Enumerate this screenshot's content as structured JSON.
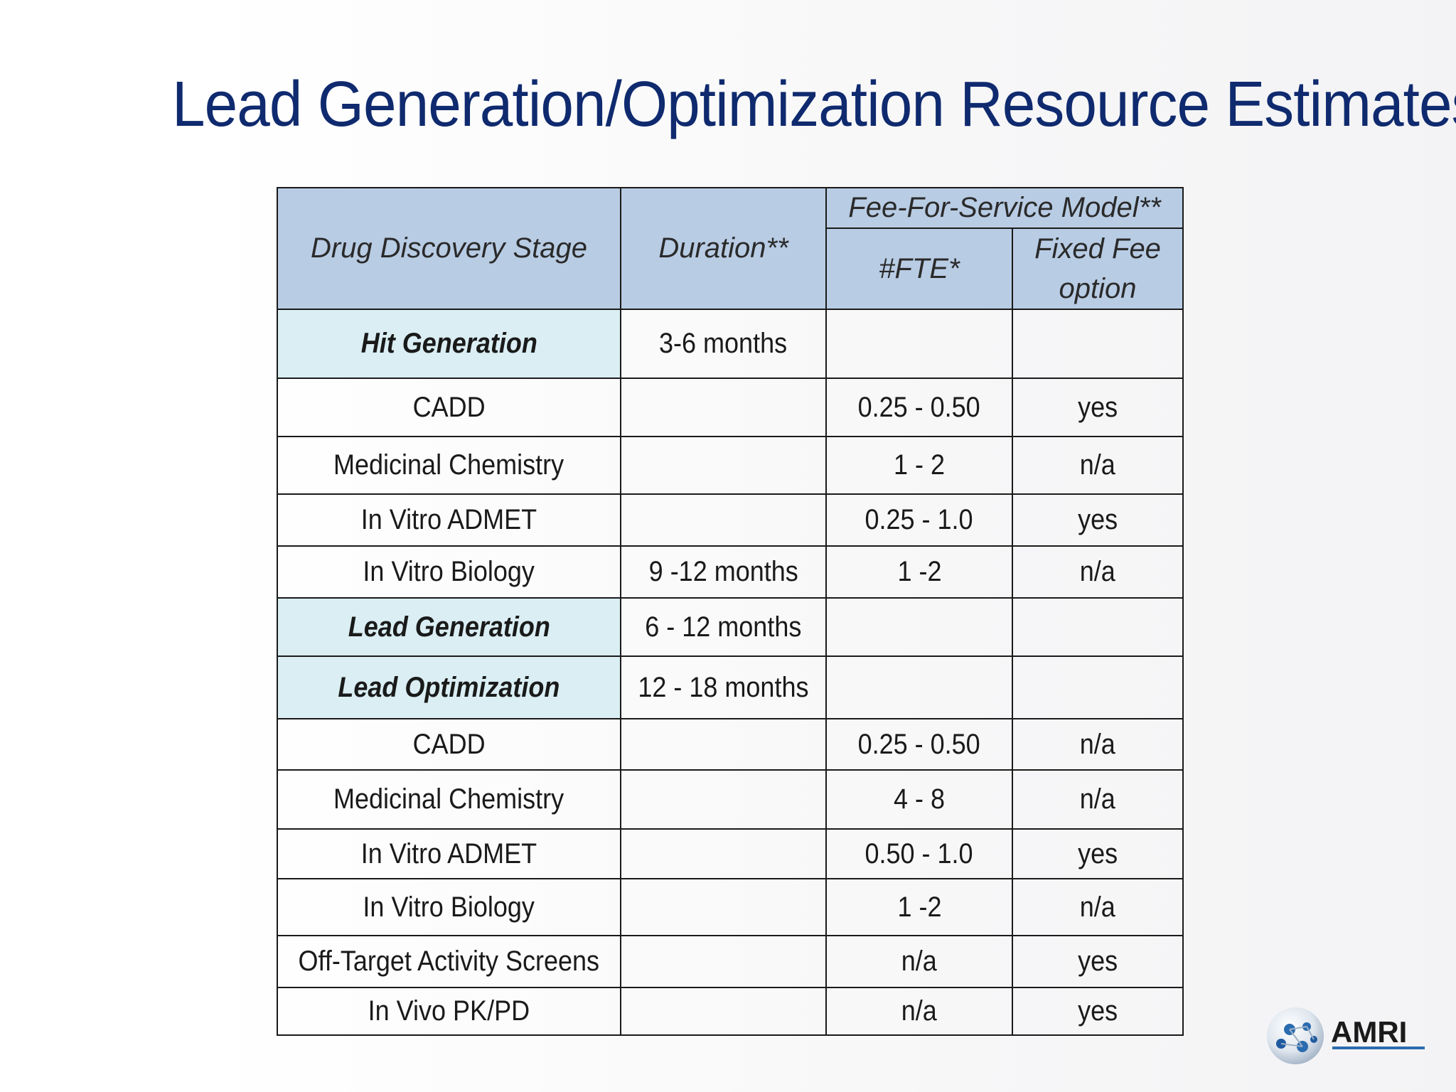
{
  "title": "Lead Generation/Optimization Resource Estimates",
  "table": {
    "header": {
      "stage": "Drug Discovery Stage",
      "duration": "Duration**",
      "group": "Fee-For-Service Model**",
      "fte": "#FTE*",
      "fixed_fee": "Fixed Fee option"
    },
    "rows": [
      {
        "stage": "Hit Generation",
        "duration": "3-6 months",
        "fte": "",
        "fixed": "",
        "type": "stage"
      },
      {
        "stage": "CADD",
        "duration": "",
        "fte": "0.25 - 0.50",
        "fixed": "yes",
        "type": "item"
      },
      {
        "stage": "Medicinal Chemistry",
        "duration": "",
        "fte": "1 - 2",
        "fixed": "n/a",
        "type": "item"
      },
      {
        "stage": "In Vitro ADMET",
        "duration": "",
        "fte": "0.25 - 1.0",
        "fixed": "yes",
        "type": "item"
      },
      {
        "stage": "In Vitro Biology",
        "duration": "9 -12 months",
        "fte": "1 -2",
        "fixed": "n/a",
        "type": "item"
      },
      {
        "stage": "Lead Generation",
        "duration": "6 - 12 months",
        "fte": "",
        "fixed": "",
        "type": "stage"
      },
      {
        "stage": "Lead Optimization",
        "duration": "12 - 18 months",
        "fte": "",
        "fixed": "",
        "type": "stage"
      },
      {
        "stage": "CADD",
        "duration": "",
        "fte": "0.25 - 0.50",
        "fixed": "n/a",
        "type": "item"
      },
      {
        "stage": "Medicinal Chemistry",
        "duration": "",
        "fte": "4 - 8",
        "fixed": "n/a",
        "type": "item"
      },
      {
        "stage": "In Vitro ADMET",
        "duration": "",
        "fte": "0.50 - 1.0",
        "fixed": "yes",
        "type": "item"
      },
      {
        "stage": "In Vitro Biology",
        "duration": "",
        "fte": "1 -2",
        "fixed": "n/a",
        "type": "item"
      },
      {
        "stage": "Off-Target Activity Screens",
        "duration": "",
        "fte": "n/a",
        "fixed": "yes",
        "type": "item"
      },
      {
        "stage": "In Vivo PK/PD",
        "duration": "",
        "fte": "n/a",
        "fixed": "yes",
        "type": "item"
      }
    ]
  },
  "logo": {
    "text": "AMRI"
  },
  "colors": {
    "title": "#0f2a6e",
    "header_bg": "#b8cce4",
    "stage_bg": "#daeef3",
    "logo_blue": "#2b6cb0"
  }
}
